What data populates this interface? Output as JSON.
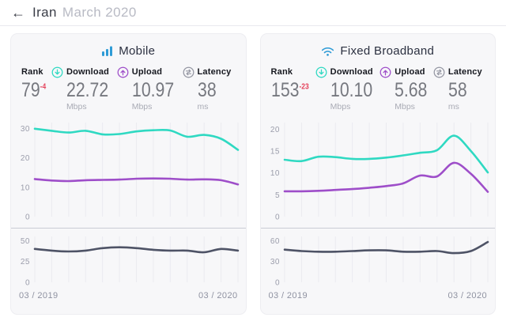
{
  "header": {
    "back_icon": "←",
    "country": "Iran",
    "period": "March 2020"
  },
  "colors": {
    "accent_blue": "#2e9bd6",
    "download_teal": "#2fd9c2",
    "upload_purple": "#9e4ec9",
    "latency_line": "#4e5366",
    "rank_change_red": "#e4435c",
    "card_bg": "#f7f7f9",
    "gridline": "#ebebf0",
    "tick_text": "#9b9dab"
  },
  "cards": [
    {
      "title": "Mobile",
      "icon": "mobile-signal-icon",
      "stats": [
        {
          "label": "Rank",
          "value": "79",
          "change": "-4",
          "unit": ""
        },
        {
          "label": "Download",
          "icon": "download-icon",
          "value": "22.72",
          "unit": "Mbps"
        },
        {
          "label": "Upload",
          "icon": "upload-icon",
          "value": "10.97",
          "unit": "Mbps"
        },
        {
          "label": "Latency",
          "icon": "latency-icon",
          "value": "38",
          "unit": "ms"
        }
      ],
      "x_start": "03 / 2019",
      "x_end": "03 / 2020"
    },
    {
      "title": "Fixed Broadband",
      "icon": "wifi-icon",
      "stats": [
        {
          "label": "Rank",
          "value": "153",
          "change": "-23",
          "unit": ""
        },
        {
          "label": "Download",
          "icon": "download-icon",
          "value": "10.10",
          "unit": "Mbps"
        },
        {
          "label": "Upload",
          "icon": "upload-icon",
          "value": "5.68",
          "unit": "Mbps"
        },
        {
          "label": "Latency",
          "icon": "latency-icon",
          "value": "58",
          "unit": "ms"
        }
      ],
      "x_start": "03 / 2019",
      "x_end": "03 / 2020"
    }
  ],
  "chart_data": [
    {
      "id": "mobile-speed",
      "type": "line",
      "x_points": 13,
      "x_axis": {
        "start": "03 / 2019",
        "end": "03 / 2020"
      },
      "ylim": [
        0,
        32
      ],
      "yticks": [
        0,
        10,
        20,
        30
      ],
      "grid": "vertical-monthly",
      "series": [
        {
          "name": "Download (Mbps)",
          "color": "#2fd9c2",
          "values": [
            29.9,
            29.2,
            28.6,
            29.2,
            28.0,
            28.1,
            29.0,
            29.4,
            29.3,
            27.2,
            27.8,
            26.5,
            22.72
          ]
        },
        {
          "name": "Upload (Mbps)",
          "color": "#9e4ec9",
          "values": [
            12.8,
            12.3,
            12.1,
            12.4,
            12.5,
            12.6,
            12.9,
            13.0,
            12.9,
            12.6,
            12.7,
            12.4,
            10.97
          ]
        }
      ]
    },
    {
      "id": "mobile-latency",
      "type": "line",
      "x_points": 13,
      "x_axis": {
        "start": "03 / 2019",
        "end": "03 / 2020"
      },
      "ylim": [
        0,
        55
      ],
      "yticks": [
        0,
        25,
        50
      ],
      "grid": "vertical-monthly",
      "series": [
        {
          "name": "Latency (ms)",
          "color": "#4e5366",
          "values": [
            40,
            38,
            37,
            38,
            41,
            42,
            41,
            39,
            38,
            38,
            36,
            40,
            38
          ]
        }
      ]
    },
    {
      "id": "fixed-speed",
      "type": "line",
      "x_points": 13,
      "x_axis": {
        "start": "03 / 2019",
        "end": "03 / 2020"
      },
      "ylim": [
        0,
        21.5
      ],
      "yticks": [
        0,
        5,
        10,
        15,
        20
      ],
      "grid": "vertical-monthly",
      "series": [
        {
          "name": "Download (Mbps)",
          "color": "#2fd9c2",
          "values": [
            13.0,
            12.7,
            13.7,
            13.6,
            13.2,
            13.2,
            13.5,
            14.0,
            14.6,
            15.2,
            18.5,
            15.0,
            10.1
          ]
        },
        {
          "name": "Upload (Mbps)",
          "color": "#9e4ec9",
          "values": [
            5.8,
            5.8,
            5.9,
            6.1,
            6.3,
            6.6,
            7.0,
            7.6,
            9.4,
            9.2,
            12.3,
            9.8,
            5.68
          ]
        }
      ]
    },
    {
      "id": "fixed-latency",
      "type": "line",
      "x_points": 13,
      "x_axis": {
        "start": "03 / 2019",
        "end": "03 / 2020"
      },
      "ylim": [
        0,
        66
      ],
      "yticks": [
        0,
        30,
        60
      ],
      "grid": "vertical-monthly",
      "series": [
        {
          "name": "Latency (ms)",
          "color": "#4e5366",
          "values": [
            47,
            45,
            44,
            44,
            45,
            46,
            46,
            44,
            44,
            45,
            42,
            45,
            58
          ]
        }
      ]
    }
  ]
}
